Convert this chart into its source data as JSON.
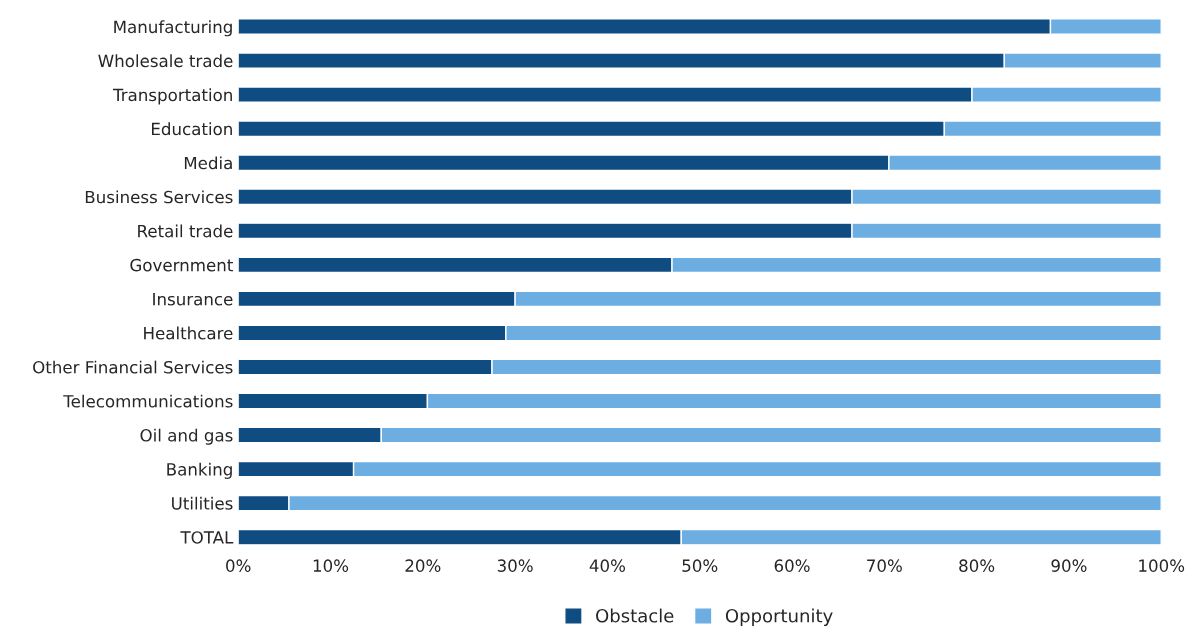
{
  "chart_data": {
    "type": "bar",
    "orientation": "horizontal",
    "stacked": true,
    "legend": "bottom",
    "grid": false,
    "categories": [
      "Manufacturing",
      "Wholesale trade",
      "Transportation",
      "Education",
      "Media",
      "Business Services",
      "Retail trade",
      "Government",
      "Insurance",
      "Healthcare",
      "Other Financial Services",
      "Telecommunications",
      "Oil and gas",
      "Banking",
      "Utilities",
      "TOTAL"
    ],
    "series": [
      {
        "name": "Obstacle",
        "color": "#0f4c81",
        "values": [
          88,
          83,
          79.5,
          76.5,
          70.5,
          66.5,
          66.5,
          47,
          30,
          29,
          27.5,
          20.5,
          15.5,
          12.5,
          5.5,
          48
        ]
      },
      {
        "name": "Opportunity",
        "color": "#6daee2",
        "values": [
          12,
          17,
          20.5,
          23.5,
          29.5,
          33.5,
          33.5,
          53,
          70,
          71,
          72.5,
          79.5,
          84.5,
          87.5,
          94.5,
          52
        ]
      }
    ],
    "xlim": [
      0,
      100
    ],
    "xticks": [
      {
        "value": 0,
        "label": "0%"
      },
      {
        "value": 10,
        "label": "10%"
      },
      {
        "value": 20,
        "label": "20%"
      },
      {
        "value": 30,
        "label": "30%"
      },
      {
        "value": 40,
        "label": "40%"
      },
      {
        "value": 50,
        "label": "50%"
      },
      {
        "value": 60,
        "label": "60%"
      },
      {
        "value": 70,
        "label": "70%"
      },
      {
        "value": 80,
        "label": "80%"
      },
      {
        "value": 90,
        "label": "90%"
      },
      {
        "value": 100,
        "label": "100%"
      }
    ]
  }
}
